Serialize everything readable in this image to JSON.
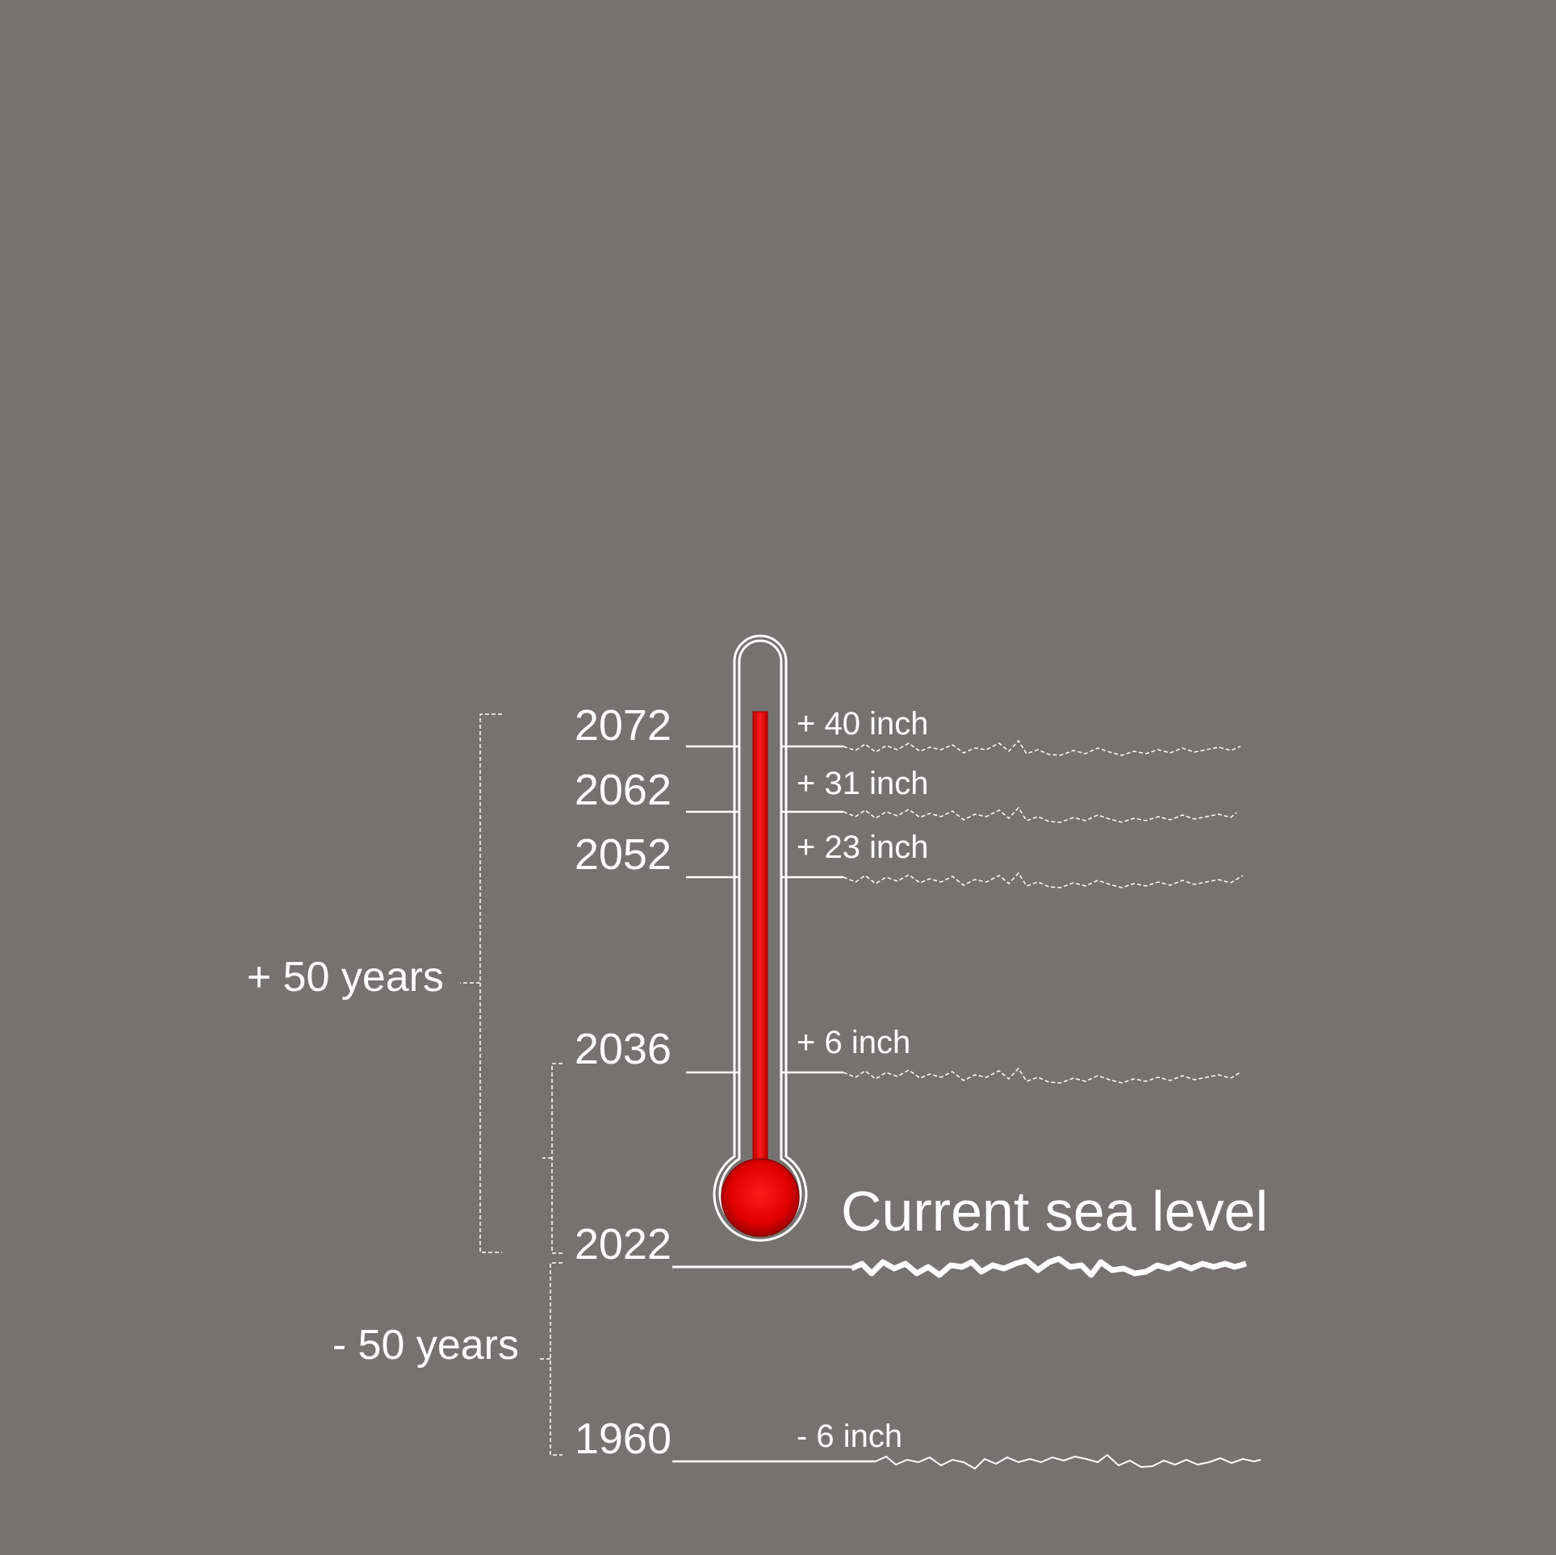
{
  "colors": {
    "background": "#767271",
    "line": "#ffffff",
    "mercury": "#d40000",
    "mercury_highlight": "#ff2a2a"
  },
  "brackets": {
    "future": "+ 50 years",
    "past": "- 50 years"
  },
  "current_label": "Current sea level",
  "levels": [
    {
      "year": "2072",
      "rise": "+ 40 inch",
      "kind": "projected"
    },
    {
      "year": "2062",
      "rise": "+ 31 inch",
      "kind": "projected"
    },
    {
      "year": "2052",
      "rise": "+ 23 inch",
      "kind": "projected"
    },
    {
      "year": "2036",
      "rise": "+ 6 inch",
      "kind": "projected"
    },
    {
      "year": "2022",
      "rise": "",
      "kind": "current"
    },
    {
      "year": "1960",
      "rise": "- 6 inch",
      "kind": "past"
    }
  ],
  "icons": {
    "thermometer": "thermometer-icon"
  }
}
